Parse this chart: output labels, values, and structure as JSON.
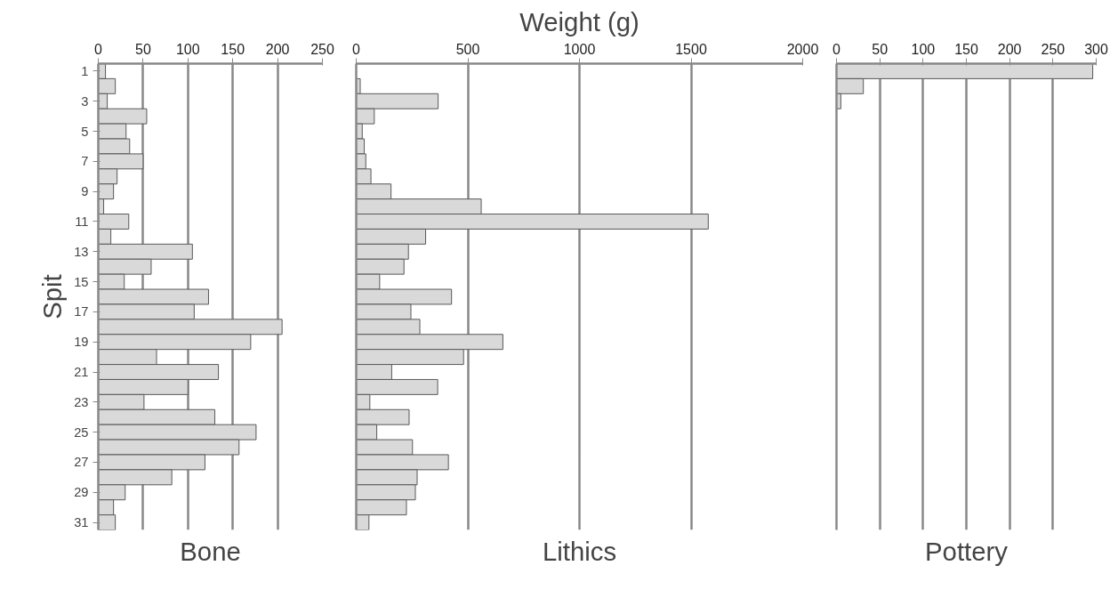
{
  "chart_data": [
    {
      "type": "bar",
      "orientation": "horizontal",
      "ylabel": "Spit",
      "xlabel": "Bone",
      "categories": [
        "1",
        null,
        "3",
        null,
        "5",
        null,
        "7",
        null,
        "9",
        null,
        "11",
        null,
        "13",
        null,
        "15",
        null,
        "17",
        null,
        "19",
        null,
        "21",
        null,
        "23",
        null,
        "25",
        null,
        "27",
        null,
        "29",
        null,
        "31"
      ],
      "series": [
        {
          "color": "#d9d9d9",
          "values": [
            8,
            19,
            10,
            54,
            31,
            35,
            50,
            21,
            17,
            6,
            34,
            14,
            105,
            59,
            29,
            123,
            107,
            205,
            170,
            65,
            134,
            100,
            51,
            130,
            176,
            157,
            119,
            82,
            30,
            17,
            19
          ]
        }
      ],
      "xlim": [
        0,
        250
      ],
      "xticks": [
        0,
        50,
        100,
        150,
        200,
        250
      ],
      "grid": "x"
    },
    {
      "type": "bar",
      "orientation": "horizontal",
      "title": "Weight (g)",
      "xlabel": "Lithics",
      "categories": [
        "1",
        null,
        "3",
        null,
        "5",
        null,
        "7",
        null,
        "9",
        null,
        "11",
        null,
        "13",
        null,
        "15",
        null,
        "17",
        null,
        "19",
        null,
        "21",
        null,
        "23",
        null,
        "25",
        null,
        "27",
        null,
        "29",
        null,
        "31"
      ],
      "series": [
        {
          "color": "#d9d9d9",
          "values": [
            null,
            18,
            367,
            81,
            27,
            36,
            43,
            66,
            156,
            560,
            1577,
            311,
            234,
            214,
            105,
            427,
            245,
            285,
            657,
            481,
            159,
            365,
            61,
            237,
            92,
            252,
            413,
            273,
            265,
            225,
            57
          ]
        }
      ],
      "xlim": [
        0,
        2000
      ],
      "xticks": [
        0,
        500,
        1000,
        1500,
        2000
      ],
      "grid": "x",
      "tick_labels": "x"
    },
    {
      "type": "bar",
      "orientation": "horizontal",
      "xlabel": "Pottery",
      "categories": [
        "1",
        null,
        "3",
        null,
        "5",
        null,
        "7",
        null,
        "9",
        null,
        "11",
        null,
        "13",
        null,
        "15",
        null,
        "17",
        null,
        "19",
        null,
        "21",
        null,
        "23",
        null,
        "25",
        null,
        "27",
        null,
        "29",
        null,
        "31"
      ],
      "series": [
        {
          "color": "#d9d9d9",
          "values": [
            296,
            31,
            5,
            null,
            null,
            null,
            null,
            null,
            null,
            null,
            null,
            null,
            null,
            null,
            null,
            null,
            null,
            null,
            null,
            null,
            null,
            null,
            null,
            null,
            null,
            null,
            null,
            null,
            null,
            null,
            null
          ]
        }
      ],
      "xlim": [
        0,
        300
      ],
      "xticks": [
        0,
        50,
        100,
        150,
        200,
        250,
        300
      ],
      "grid": "x",
      "tick_labels": "x"
    }
  ]
}
